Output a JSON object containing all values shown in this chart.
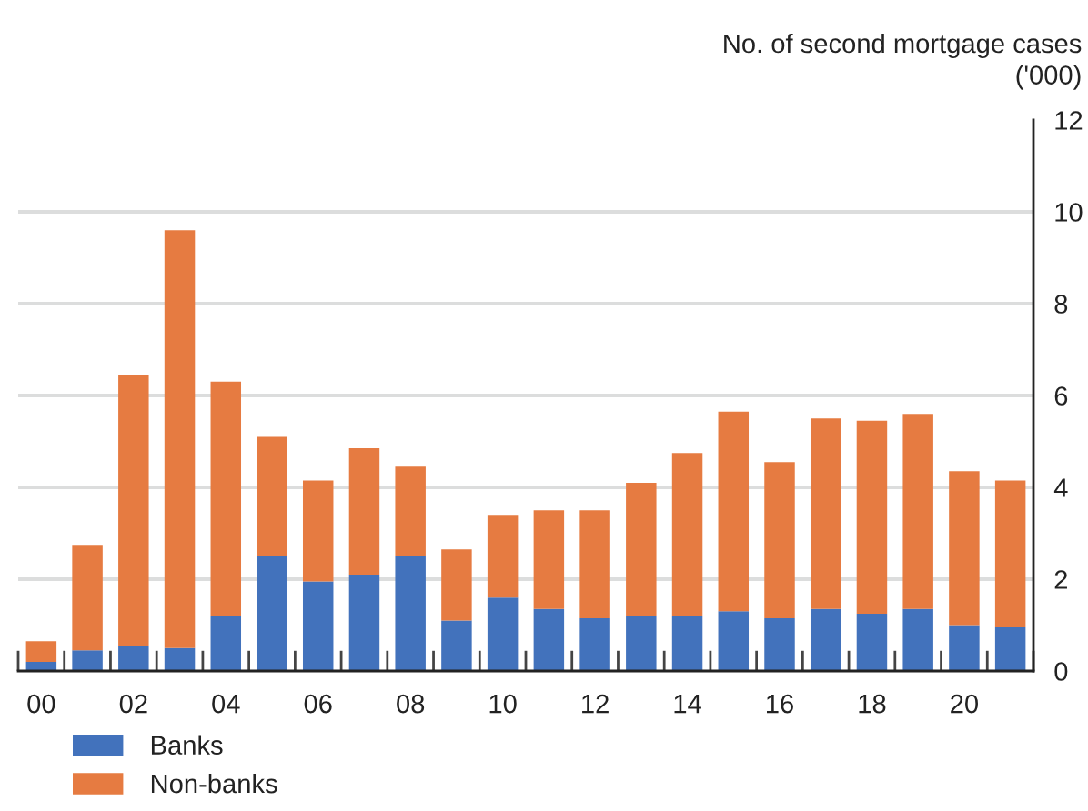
{
  "chart_data": {
    "type": "bar",
    "stacked": true,
    "ylabel": "No. of second mortgage cases\n('000)",
    "categories": [
      "00",
      null,
      "02",
      null,
      "04",
      null,
      "06",
      null,
      "08",
      null,
      "10",
      null,
      "12",
      null,
      "14",
      null,
      "16",
      null,
      "18",
      null,
      "20",
      null
    ],
    "series": [
      {
        "name": "Banks",
        "color": "#4272bc",
        "values": [
          0.2,
          0.45,
          0.55,
          0.5,
          1.2,
          2.5,
          1.95,
          2.1,
          2.5,
          1.1,
          1.6,
          1.35,
          1.15,
          1.2,
          1.2,
          1.3,
          1.15,
          1.35,
          1.25,
          1.35,
          1.0,
          0.95
        ]
      },
      {
        "name": "Non-banks",
        "color": "#e67b41",
        "values": [
          0.45,
          2.3,
          5.9,
          9.1,
          5.1,
          2.6,
          2.2,
          2.75,
          1.95,
          1.55,
          1.8,
          2.15,
          2.35,
          2.9,
          3.55,
          4.35,
          3.4,
          4.15,
          4.2,
          4.25,
          3.35,
          3.2
        ]
      }
    ],
    "ylim": [
      0,
      12
    ],
    "yticks": [
      0,
      2,
      4,
      6,
      8,
      10,
      12
    ],
    "grid": "y",
    "legend": "bottom left"
  }
}
